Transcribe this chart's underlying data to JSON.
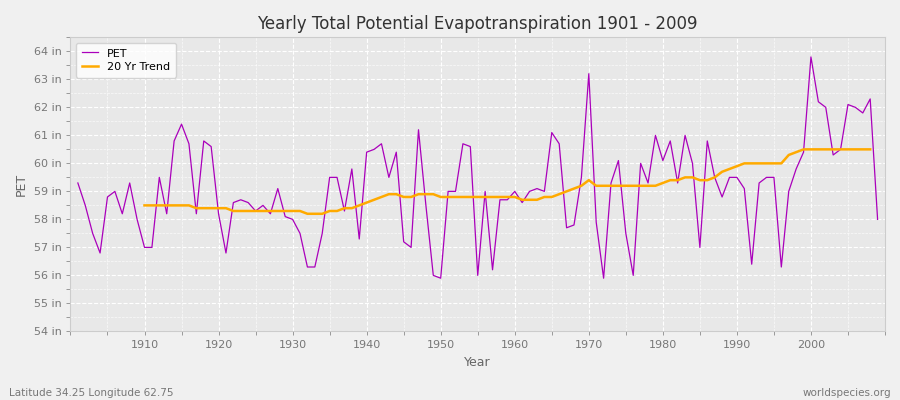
{
  "title": "Yearly Total Potential Evapotranspiration 1901 - 2009",
  "xlabel": "Year",
  "ylabel": "PET",
  "subtitle_left": "Latitude 34.25 Longitude 62.75",
  "subtitle_right": "worldspecies.org",
  "ylim": [
    54,
    64.5
  ],
  "yticks": [
    54,
    55,
    56,
    57,
    58,
    59,
    60,
    61,
    62,
    63,
    64
  ],
  "ytick_labels": [
    "54 in",
    "55 in",
    "56 in",
    "57 in",
    "58 in",
    "59 in",
    "60 in",
    "61 in",
    "62 in",
    "63 in",
    "64 in"
  ],
  "xlim": [
    1900,
    2010
  ],
  "pet_color": "#aa00bb",
  "trend_color": "#ffaa00",
  "background_color": "#f0f0f0",
  "plot_bg_color": "#e8e8e8",
  "grid_color": "#ffffff",
  "pet_years": [
    1901,
    1902,
    1903,
    1904,
    1905,
    1906,
    1907,
    1908,
    1909,
    1910,
    1911,
    1912,
    1913,
    1914,
    1915,
    1916,
    1917,
    1918,
    1919,
    1920,
    1921,
    1922,
    1923,
    1924,
    1925,
    1926,
    1927,
    1928,
    1929,
    1930,
    1931,
    1932,
    1933,
    1934,
    1935,
    1936,
    1937,
    1938,
    1939,
    1940,
    1941,
    1942,
    1943,
    1944,
    1945,
    1946,
    1947,
    1948,
    1949,
    1950,
    1951,
    1952,
    1953,
    1954,
    1955,
    1956,
    1957,
    1958,
    1959,
    1960,
    1961,
    1962,
    1963,
    1964,
    1965,
    1966,
    1967,
    1968,
    1969,
    1970,
    1971,
    1972,
    1973,
    1974,
    1975,
    1976,
    1977,
    1978,
    1979,
    1980,
    1981,
    1982,
    1983,
    1984,
    1985,
    1986,
    1987,
    1988,
    1989,
    1990,
    1991,
    1992,
    1993,
    1994,
    1995,
    1996,
    1997,
    1998,
    1999,
    2000,
    2001,
    2002,
    2003,
    2004,
    2005,
    2006,
    2007,
    2008,
    2009
  ],
  "pet_values": [
    59.3,
    58.5,
    57.5,
    56.8,
    58.8,
    59.0,
    58.2,
    59.3,
    58.0,
    57.0,
    57.0,
    59.5,
    58.2,
    60.8,
    61.4,
    60.7,
    58.2,
    60.8,
    60.6,
    58.2,
    56.8,
    58.6,
    58.7,
    58.6,
    58.3,
    58.5,
    58.2,
    59.1,
    58.1,
    58.0,
    57.5,
    56.3,
    56.3,
    57.5,
    59.5,
    59.5,
    58.3,
    59.8,
    57.3,
    60.4,
    60.5,
    60.7,
    59.5,
    60.4,
    57.2,
    57.0,
    61.2,
    58.5,
    56.0,
    55.9,
    59.0,
    59.0,
    60.7,
    60.6,
    56.0,
    59.0,
    56.2,
    58.7,
    58.7,
    59.0,
    58.6,
    59.0,
    59.1,
    59.0,
    61.1,
    60.7,
    57.7,
    57.8,
    59.5,
    63.2,
    57.9,
    55.9,
    59.3,
    60.1,
    57.5,
    56.0,
    60.0,
    59.3,
    61.0,
    60.1,
    60.8,
    59.3,
    61.0,
    60.0,
    57.0,
    60.8,
    59.5,
    58.8,
    59.5,
    59.5,
    59.1,
    56.4,
    59.3,
    59.5,
    59.5,
    56.3,
    59.0,
    59.8,
    60.4,
    63.8,
    62.2,
    62.0,
    60.3,
    60.5,
    62.1,
    62.0,
    61.8,
    62.3,
    58.0
  ],
  "trend_years": [
    1901,
    1902,
    1903,
    1904,
    1905,
    1906,
    1907,
    1908,
    1909,
    1910,
    1911,
    1912,
    1913,
    1914,
    1915,
    1916,
    1917,
    1918,
    1919,
    1920,
    1921,
    1922,
    1923,
    1924,
    1925,
    1926,
    1927,
    1928,
    1929,
    1930,
    1931,
    1932,
    1933,
    1934,
    1935,
    1936,
    1937,
    1938,
    1939,
    1940,
    1941,
    1942,
    1943,
    1944,
    1945,
    1946,
    1947,
    1948,
    1949,
    1950,
    1951,
    1952,
    1953,
    1954,
    1955,
    1956,
    1957,
    1958,
    1959,
    1960,
    1961,
    1962,
    1963,
    1964,
    1965,
    1966,
    1967,
    1968,
    1969,
    1970,
    1971,
    1972,
    1973,
    1974,
    1975,
    1976,
    1977,
    1978,
    1979,
    1980,
    1981,
    1982,
    1983,
    1984,
    1985,
    1986,
    1987,
    1988,
    1989,
    1990,
    1991,
    1992,
    1993,
    1994,
    1995,
    1996,
    1997,
    1998,
    1999,
    2000,
    2001,
    2002,
    2003,
    2004,
    2005,
    2006,
    2007,
    2008,
    2009
  ],
  "trend_values": [
    null,
    null,
    null,
    null,
    null,
    null,
    null,
    null,
    null,
    58.5,
    58.5,
    58.5,
    58.5,
    58.5,
    58.5,
    58.5,
    58.4,
    58.4,
    58.4,
    58.4,
    58.4,
    58.3,
    58.3,
    58.3,
    58.3,
    58.3,
    58.3,
    58.3,
    58.3,
    58.3,
    58.3,
    58.2,
    58.2,
    58.2,
    58.3,
    58.3,
    58.4,
    58.4,
    58.5,
    58.6,
    58.7,
    58.8,
    58.9,
    58.9,
    58.8,
    58.8,
    58.9,
    58.9,
    58.9,
    58.8,
    58.8,
    58.8,
    58.8,
    58.8,
    58.8,
    58.8,
    58.8,
    58.8,
    58.8,
    58.8,
    58.7,
    58.7,
    58.7,
    58.8,
    58.8,
    58.9,
    59.0,
    59.1,
    59.2,
    59.4,
    59.2,
    59.2,
    59.2,
    59.2,
    59.2,
    59.2,
    59.2,
    59.2,
    59.2,
    59.3,
    59.4,
    59.4,
    59.5,
    59.5,
    59.4,
    59.4,
    59.5,
    59.7,
    59.8,
    59.9,
    60.0,
    60.0,
    60.0,
    60.0,
    60.0,
    60.0,
    60.3,
    60.4,
    60.5,
    60.5,
    60.5,
    60.5,
    60.5,
    60.5,
    60.5,
    60.5,
    60.5,
    60.5
  ]
}
